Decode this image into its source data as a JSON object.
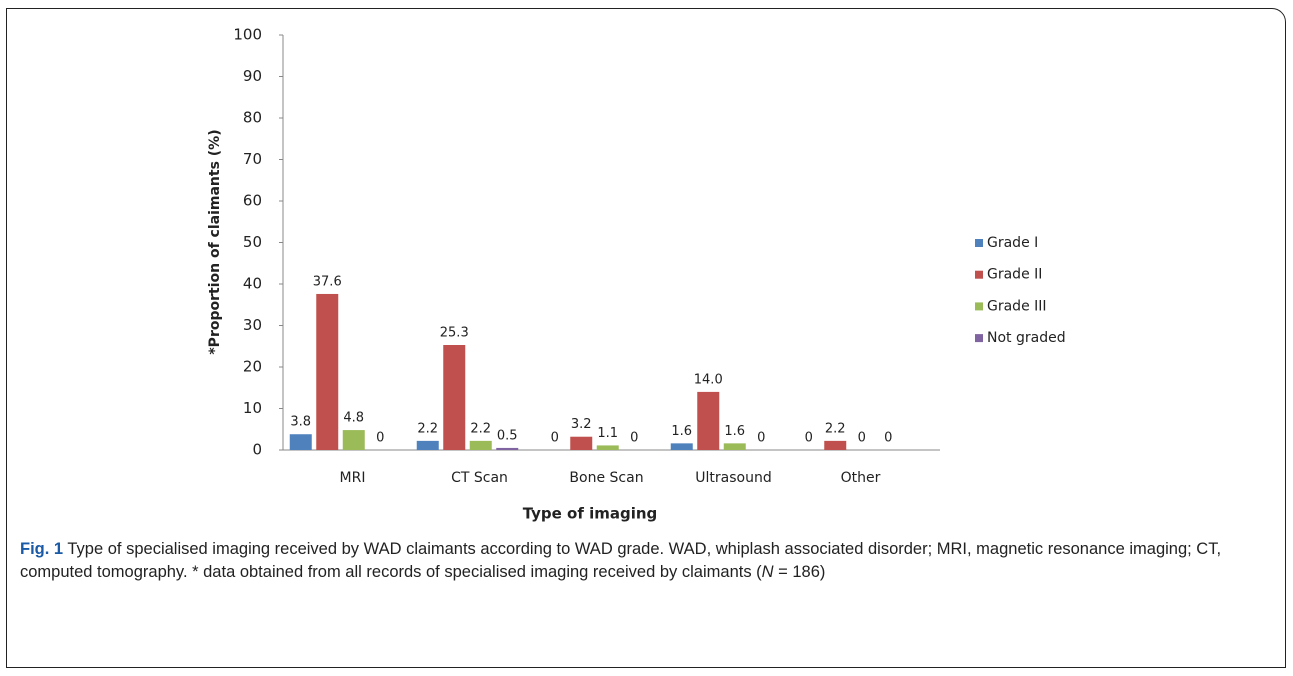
{
  "chart_data": {
    "type": "bar",
    "categories": [
      "MRI",
      "CT Scan",
      "Bone Scan",
      "Ultrasound",
      "Other"
    ],
    "series": [
      {
        "name": "Grade I",
        "color": "#4f81bd",
        "values": [
          3.8,
          2.2,
          0,
          1.6,
          0
        ],
        "value_labels": [
          "3.8",
          "2.2",
          "0",
          "1.6",
          "0"
        ]
      },
      {
        "name": "Grade II",
        "color": "#c0504d",
        "values": [
          37.6,
          25.3,
          3.2,
          14.0,
          2.2
        ],
        "value_labels": [
          "37.6",
          "25.3",
          "3.2",
          "14.0",
          "2.2"
        ]
      },
      {
        "name": "Grade III",
        "color": "#9bbb59",
        "values": [
          4.8,
          2.2,
          1.1,
          1.6,
          0
        ],
        "value_labels": [
          "4.8",
          "2.2",
          "1.1",
          "1.6",
          "0"
        ]
      },
      {
        "name": "Not graded",
        "color": "#8064a2",
        "values": [
          0,
          0.5,
          0,
          0,
          0
        ],
        "value_labels": [
          "0",
          "0.5",
          "0",
          "0",
          "0"
        ]
      }
    ],
    "ylim": [
      0,
      100
    ],
    "yticks": [
      0,
      10,
      20,
      30,
      40,
      50,
      60,
      70,
      80,
      90,
      100
    ],
    "y_label": "*Proportion of claimants  (%)",
    "x_label": "Type of imaging",
    "legend": "right",
    "grid": false,
    "caption_label": "Fig. 1",
    "caption": [
      "Type of specialised imaging received by WAD claimants according to WAD grade. WAD, whiplash associated disorder; MRI, magnetic resonance imaging; CT, computed tomography. * data obtained from all records of specialised imaging received by claimants (",
      "N",
      " = 186)"
    ]
  }
}
